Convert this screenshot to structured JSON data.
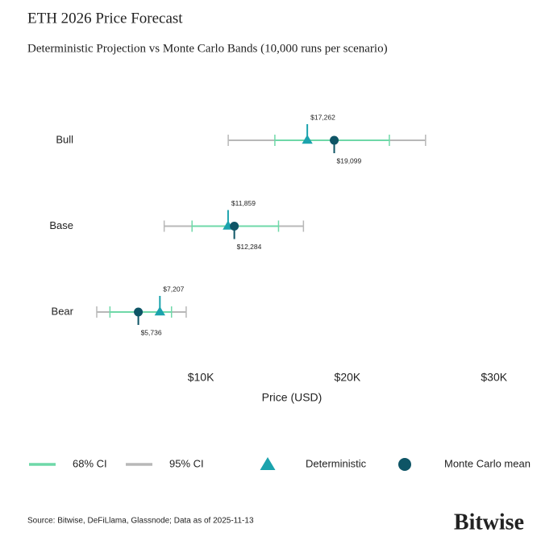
{
  "chart_data": {
    "type": "forecast_interval",
    "title": "ETH 2026 Price Forecast",
    "subtitle": "Deterministic Projection vs Monte Carlo Bands (10,000 runs per scenario)",
    "categories": [
      "Bull",
      "Base",
      "Bear"
    ],
    "series": [
      {
        "name": "Deterministic",
        "color": "#1ba3ad",
        "marker": "triangle",
        "values": [
          17262,
          11859,
          7207
        ],
        "value_labels": [
          "$17,262",
          "$11,859",
          "$7,207"
        ]
      },
      {
        "name": "Monte Carlo mean",
        "color": "#0e5566",
        "marker": "circle",
        "values": [
          19099,
          12284,
          5736
        ],
        "value_labels": [
          "$19,099",
          "$12,284",
          "$5,736"
        ]
      }
    ],
    "intervals": [
      {
        "name": "95% CI",
        "color": "#b8b8b8",
        "low": [
          11870,
          7500,
          2900
        ],
        "high": [
          25330,
          17000,
          9000
        ]
      },
      {
        "name": "68% CI",
        "color": "#6fd8a8",
        "low": [
          15050,
          9400,
          3800
        ],
        "high": [
          22860,
          15300,
          8000
        ]
      }
    ],
    "legend_order": [
      "68% CI",
      "95% CI",
      "Deterministic",
      "Monte Carlo mean"
    ],
    "xlabel": "Price (USD)",
    "xlim": [
      1800,
      31500
    ],
    "xticks": [
      {
        "value": 10000,
        "label": "$10K"
      },
      {
        "value": 20000,
        "label": "$20K"
      },
      {
        "value": 30000,
        "label": "$30K"
      }
    ],
    "grid": false
  },
  "footer": {
    "source": "Source: Bitwise, DeFiLlama, Glassnode; Data as of 2025-11-13",
    "brand": "Bitwise"
  }
}
